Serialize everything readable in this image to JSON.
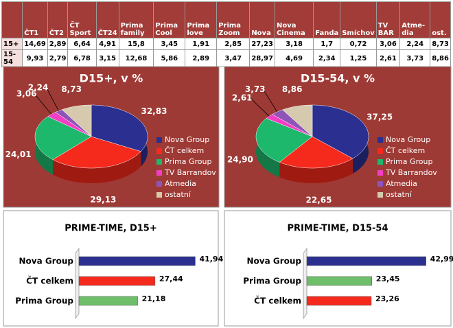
{
  "table": {
    "header": [
      "ČT1",
      "ČT2",
      "ČT Sport",
      "ČT24",
      "Prima family",
      "Prima Cool",
      "Prima love",
      "Prima Zoom",
      "Nova",
      "Nova Cinema",
      "Fanda",
      "Smíchov",
      "TV BAR",
      "Atme-dia",
      "ost."
    ],
    "rows": [
      [
        "15+",
        "14,69",
        "2,89",
        "6,64",
        "4,91",
        "15,8",
        "3,45",
        "1,91",
        "2,85",
        "27,23",
        "3,18",
        "1,7",
        "0,72",
        "3,06",
        "2,24",
        "8,73"
      ],
      [
        "15-54",
        "9,93",
        "2,79",
        "6,78",
        "3,15",
        "12,68",
        "5,86",
        "2,89",
        "3,47",
        "28,97",
        "4,69",
        "2,34",
        "1,25",
        "2,61",
        "3,73",
        "8,86"
      ]
    ]
  },
  "chart_data": [
    {
      "type": "pie",
      "title": "D15+, v %",
      "categories": [
        "Nova Group",
        "ČT celkem",
        "Prima Group",
        "TV Barrandov",
        "Atmedia",
        "ostatní"
      ],
      "values": [
        32.83,
        29.13,
        24.01,
        3.06,
        2.24,
        8.73
      ],
      "value_labels": [
        "32,83",
        "29,13",
        "24,01",
        "3,06",
        "2,24",
        "8,73"
      ],
      "colors": [
        "#2b2f8f",
        "#f5291c",
        "#1db86b",
        "#f23ec4",
        "#8e54b8",
        "#d6c9ad"
      ]
    },
    {
      "type": "pie",
      "title": "D15-54, v %",
      "categories": [
        "Nova Group",
        "ČT celkem",
        "Prima Group",
        "TV Barrandov",
        "Atmedia",
        "ostatní"
      ],
      "values": [
        37.25,
        22.65,
        24.9,
        2.61,
        3.73,
        8.86
      ],
      "value_labels": [
        "37,25",
        "22,65",
        "24,90",
        "2,61",
        "3,73",
        "8,86"
      ],
      "colors": [
        "#2b2f8f",
        "#f5291c",
        "#1db86b",
        "#f23ec4",
        "#8e54b8",
        "#d6c9ad"
      ]
    },
    {
      "type": "hbar",
      "title": "PRIME-TIME, D15+",
      "categories": [
        "Nova Group",
        "ČT celkem",
        "Prima Group"
      ],
      "values": [
        41.94,
        27.44,
        21.18
      ],
      "value_labels": [
        "41,94",
        "27,44",
        "21,18"
      ],
      "colors": [
        "#2b2f8f",
        "#f5291c",
        "#6fbf6a"
      ],
      "xlim": [
        0,
        50
      ]
    },
    {
      "type": "hbar",
      "title": "PRIME-TIME, D15-54",
      "categories": [
        "Nova Group",
        "Prima Group",
        "ČT celkem"
      ],
      "values": [
        42.99,
        23.45,
        23.26
      ],
      "value_labels": [
        "42,99",
        "23,45",
        "23,26"
      ],
      "colors": [
        "#2b2f8f",
        "#6fbf6a",
        "#f5291c"
      ],
      "xlim": [
        0,
        50
      ]
    }
  ]
}
